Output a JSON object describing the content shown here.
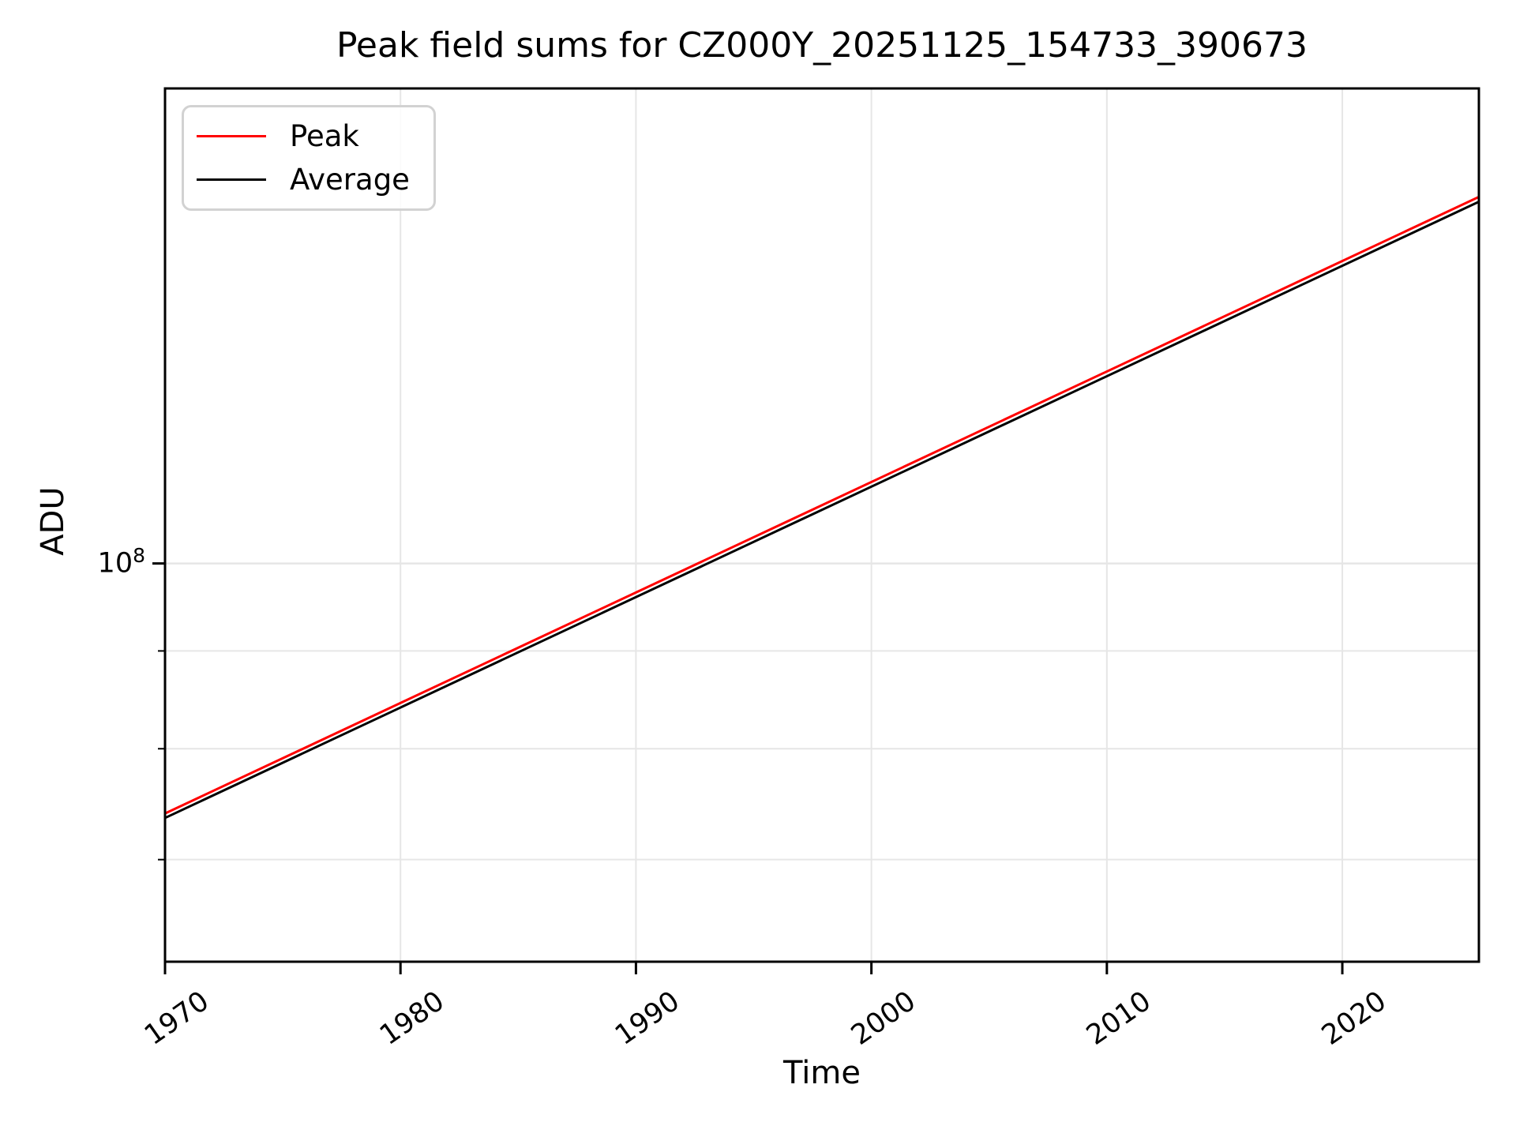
{
  "chart_data": {
    "type": "line",
    "title": "Peak field sums for CZ000Y_20251125_154733_390673",
    "xlabel": "Time",
    "ylabel": "ADU",
    "y_scale": "log",
    "grid": true,
    "legend_loc": "upper left",
    "xlim": [
      1970,
      2025.8
    ],
    "ylim": [
      61900000,
      177200000
    ],
    "xticks": [
      1970,
      1980,
      1990,
      2000,
      2010,
      2020
    ],
    "xtick_rotation_deg": -35,
    "ytick_major": {
      "value": 100000000,
      "base": "10",
      "exp": "8",
      "label": "10^8"
    },
    "yticks_minor": [
      90000000,
      80000000,
      70000000
    ],
    "series": [
      {
        "name": "Peak",
        "color": "#ff0000",
        "x": [
          1970,
          2025.8
        ],
        "y": [
          74000000,
          155500000
        ]
      },
      {
        "name": "Average",
        "color": "#000000",
        "x": [
          1970,
          2025.8
        ],
        "y": [
          73600000,
          154600000
        ]
      }
    ],
    "colors": {
      "grid": "#e6e6e6",
      "spine": "#000000",
      "background": "#ffffff"
    }
  }
}
